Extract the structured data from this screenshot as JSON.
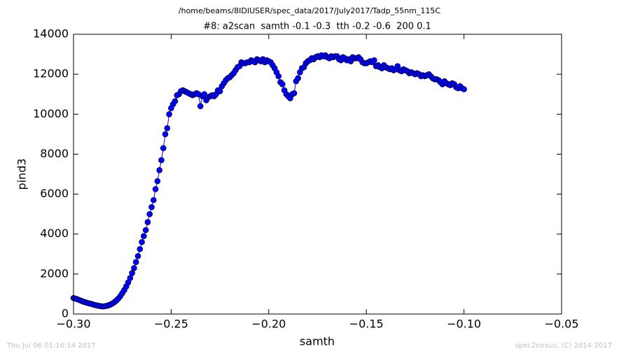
{
  "chart_data": {
    "type": "line",
    "suptitle": "/home/beams/8IDIUSER/spec_data/2017/July2017/Tadp_55nm_115C",
    "title": "#8: a2scan  samth -0.1 -0.3  tth -0.2 -0.6  200 0.1",
    "xlabel": "samth",
    "ylabel": "pind3",
    "footer_left": "Thu Jul 06 01:16:14 2017",
    "footer_right": "spec2nexus, (C) 2014-2017",
    "color": "#0000ff",
    "marker": true,
    "xlim": [
      -0.3,
      -0.05
    ],
    "ylim": [
      0,
      14000
    ],
    "xticks": [
      {
        "value": -0.3,
        "label": "−0.30"
      },
      {
        "value": -0.25,
        "label": "−0.25"
      },
      {
        "value": -0.2,
        "label": "−0.20"
      },
      {
        "value": -0.15,
        "label": "−0.15"
      },
      {
        "value": -0.1,
        "label": "−0.10"
      },
      {
        "value": -0.05,
        "label": "−0.05"
      }
    ],
    "yticks": [
      0,
      2000,
      4000,
      6000,
      8000,
      10000,
      12000,
      14000
    ],
    "x": [
      -0.3,
      -0.299,
      -0.298,
      -0.297,
      -0.296,
      -0.295,
      -0.294,
      -0.293,
      -0.292,
      -0.291,
      -0.29,
      -0.289,
      -0.288,
      -0.287,
      -0.286,
      -0.285,
      -0.284,
      -0.283,
      -0.282,
      -0.281,
      -0.28,
      -0.279,
      -0.278,
      -0.277,
      -0.276,
      -0.275,
      -0.274,
      -0.273,
      -0.272,
      -0.271,
      -0.27,
      -0.269,
      -0.268,
      -0.267,
      -0.266,
      -0.265,
      -0.264,
      -0.263,
      -0.262,
      -0.261,
      -0.26,
      -0.259,
      -0.258,
      -0.257,
      -0.256,
      -0.255,
      -0.254,
      -0.253,
      -0.252,
      -0.251,
      -0.25,
      -0.249,
      -0.248,
      -0.247,
      -0.246,
      -0.245,
      -0.244,
      -0.243,
      -0.242,
      -0.241,
      -0.24,
      -0.239,
      -0.238,
      -0.237,
      -0.236,
      -0.235,
      -0.234,
      -0.233,
      -0.232,
      -0.231,
      -0.23,
      -0.229,
      -0.228,
      -0.227,
      -0.226,
      -0.225,
      -0.224,
      -0.223,
      -0.222,
      -0.221,
      -0.22,
      -0.219,
      -0.218,
      -0.217,
      -0.216,
      -0.215,
      -0.214,
      -0.213,
      -0.212,
      -0.211,
      -0.21,
      -0.209,
      -0.208,
      -0.207,
      -0.206,
      -0.205,
      -0.204,
      -0.203,
      -0.202,
      -0.201,
      -0.2,
      -0.199,
      -0.198,
      -0.197,
      -0.196,
      -0.195,
      -0.194,
      -0.193,
      -0.192,
      -0.191,
      -0.19,
      -0.189,
      -0.188,
      -0.187,
      -0.186,
      -0.185,
      -0.184,
      -0.183,
      -0.182,
      -0.181,
      -0.18,
      -0.179,
      -0.178,
      -0.177,
      -0.176,
      -0.175,
      -0.174,
      -0.173,
      -0.172,
      -0.171,
      -0.17,
      -0.169,
      -0.168,
      -0.167,
      -0.166,
      -0.165,
      -0.164,
      -0.163,
      -0.162,
      -0.161,
      -0.16,
      -0.159,
      -0.158,
      -0.157,
      -0.156,
      -0.155,
      -0.154,
      -0.153,
      -0.152,
      -0.151,
      -0.15,
      -0.149,
      -0.148,
      -0.147,
      -0.146,
      -0.145,
      -0.144,
      -0.143,
      -0.142,
      -0.141,
      -0.14,
      -0.139,
      -0.138,
      -0.137,
      -0.136,
      -0.135,
      -0.134,
      -0.133,
      -0.132,
      -0.131,
      -0.13,
      -0.129,
      -0.128,
      -0.127,
      -0.126,
      -0.125,
      -0.124,
      -0.123,
      -0.122,
      -0.121,
      -0.12,
      -0.119,
      -0.118,
      -0.117,
      -0.116,
      -0.115,
      -0.114,
      -0.113,
      -0.112,
      -0.111,
      -0.11,
      -0.109,
      -0.108,
      -0.107,
      -0.106,
      -0.105,
      -0.104,
      -0.103,
      -0.102,
      -0.101,
      -0.1
    ],
    "values": [
      800,
      770,
      740,
      700,
      660,
      620,
      590,
      560,
      530,
      510,
      480,
      450,
      430,
      410,
      390,
      380,
      390,
      410,
      440,
      480,
      530,
      600,
      680,
      780,
      900,
      1050,
      1200,
      1380,
      1580,
      1800,
      2050,
      2300,
      2600,
      2900,
      3250,
      3600,
      3900,
      4200,
      4600,
      5000,
      5350,
      5700,
      6250,
      6650,
      7200,
      7700,
      8300,
      9000,
      9300,
      10000,
      10300,
      10500,
      10650,
      10950,
      11000,
      11150,
      11200,
      11150,
      11100,
      11050,
      11000,
      10950,
      11000,
      11050,
      11000,
      10400,
      10900,
      11000,
      10700,
      10850,
      10900,
      10950,
      10900,
      11000,
      11200,
      11150,
      11400,
      11550,
      11700,
      11800,
      11850,
      11950,
      12050,
      12200,
      12350,
      12400,
      12600,
      12550,
      12550,
      12600,
      12600,
      12700,
      12650,
      12600,
      12750,
      12700,
      12650,
      12750,
      12600,
      12700,
      12650,
      12600,
      12450,
      12300,
      12100,
      11900,
      11600,
      11500,
      11200,
      11000,
      10900,
      10800,
      11000,
      11050,
      11650,
      11800,
      12100,
      12300,
      12350,
      12550,
      12650,
      12700,
      12800,
      12750,
      12850,
      12900,
      12850,
      12950,
      12900,
      12950,
      12850,
      12800,
      12900,
      12850,
      12900,
      12900,
      12750,
      12700,
      12850,
      12800,
      12700,
      12750,
      12650,
      12850,
      12800,
      12800,
      12850,
      12750,
      12600,
      12550,
      12550,
      12600,
      12650,
      12600,
      12700,
      12400,
      12450,
      12350,
      12300,
      12450,
      12350,
      12300,
      12250,
      12300,
      12200,
      12250,
      12400,
      12200,
      12150,
      12250,
      12200,
      12150,
      12050,
      12100,
      12050,
      12000,
      12050,
      12000,
      11900,
      11950,
      11900,
      11950,
      12000,
      11900,
      11800,
      11750,
      11750,
      11700,
      11600,
      11500,
      11650,
      11550,
      11500,
      11450,
      11550,
      11500,
      11350,
      11300,
      11400,
      11300,
      11250
    ]
  }
}
